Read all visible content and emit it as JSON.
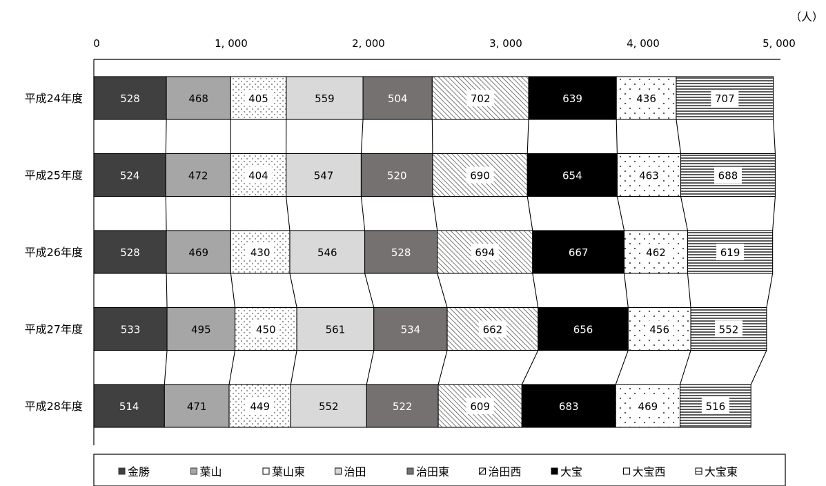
{
  "chart_data": {
    "type": "bar",
    "orientation": "horizontal",
    "stacked": true,
    "unit_label": "（人）",
    "xlim": [
      0,
      5000
    ],
    "x_ticks": [
      0,
      1000,
      2000,
      3000,
      4000,
      5000
    ],
    "x_tick_labels": [
      "0",
      "1, 000",
      "2, 000",
      "3, 000",
      "4, 000",
      "5, 000"
    ],
    "categories": [
      "平成24年度",
      "平成25年度",
      "平成26年度",
      "平成27年度",
      "平成28年度"
    ],
    "series": [
      {
        "name": "金勝",
        "values": [
          528,
          524,
          528,
          533,
          514
        ],
        "color": "#404040",
        "pattern": "solid",
        "label_color": "#ffffff"
      },
      {
        "name": "葉山",
        "values": [
          468,
          472,
          469,
          495,
          471
        ],
        "color": "#a6a6a6",
        "pattern": "solid",
        "label_color": "#000000"
      },
      {
        "name": "葉山東",
        "values": [
          405,
          404,
          430,
          450,
          449
        ],
        "color": "#ffffff",
        "pattern": "dots-dense",
        "label_color": "#000000"
      },
      {
        "name": "治田",
        "values": [
          559,
          547,
          546,
          561,
          552
        ],
        "color": "#d9d9d9",
        "pattern": "solid",
        "label_color": "#000000"
      },
      {
        "name": "治田東",
        "values": [
          504,
          520,
          528,
          534,
          522
        ],
        "color": "#767171",
        "pattern": "solid",
        "label_color": "#ffffff"
      },
      {
        "name": "治田西",
        "values": [
          702,
          690,
          694,
          662,
          609
        ],
        "color": "#ffffff",
        "pattern": "diagonal",
        "label_color": "#000000"
      },
      {
        "name": "大宝",
        "values": [
          639,
          654,
          667,
          656,
          683
        ],
        "color": "#000000",
        "pattern": "solid",
        "label_color": "#ffffff"
      },
      {
        "name": "大宝西",
        "values": [
          436,
          463,
          462,
          456,
          469
        ],
        "color": "#ffffff",
        "pattern": "dots-sparse",
        "label_color": "#000000"
      },
      {
        "name": "大宝東",
        "values": [
          707,
          688,
          619,
          552,
          516
        ],
        "color": "#ffffff",
        "pattern": "horizontal",
        "label_color": "#000000"
      }
    ],
    "legend_position": "bottom",
    "grid": false,
    "series_lines": true
  }
}
